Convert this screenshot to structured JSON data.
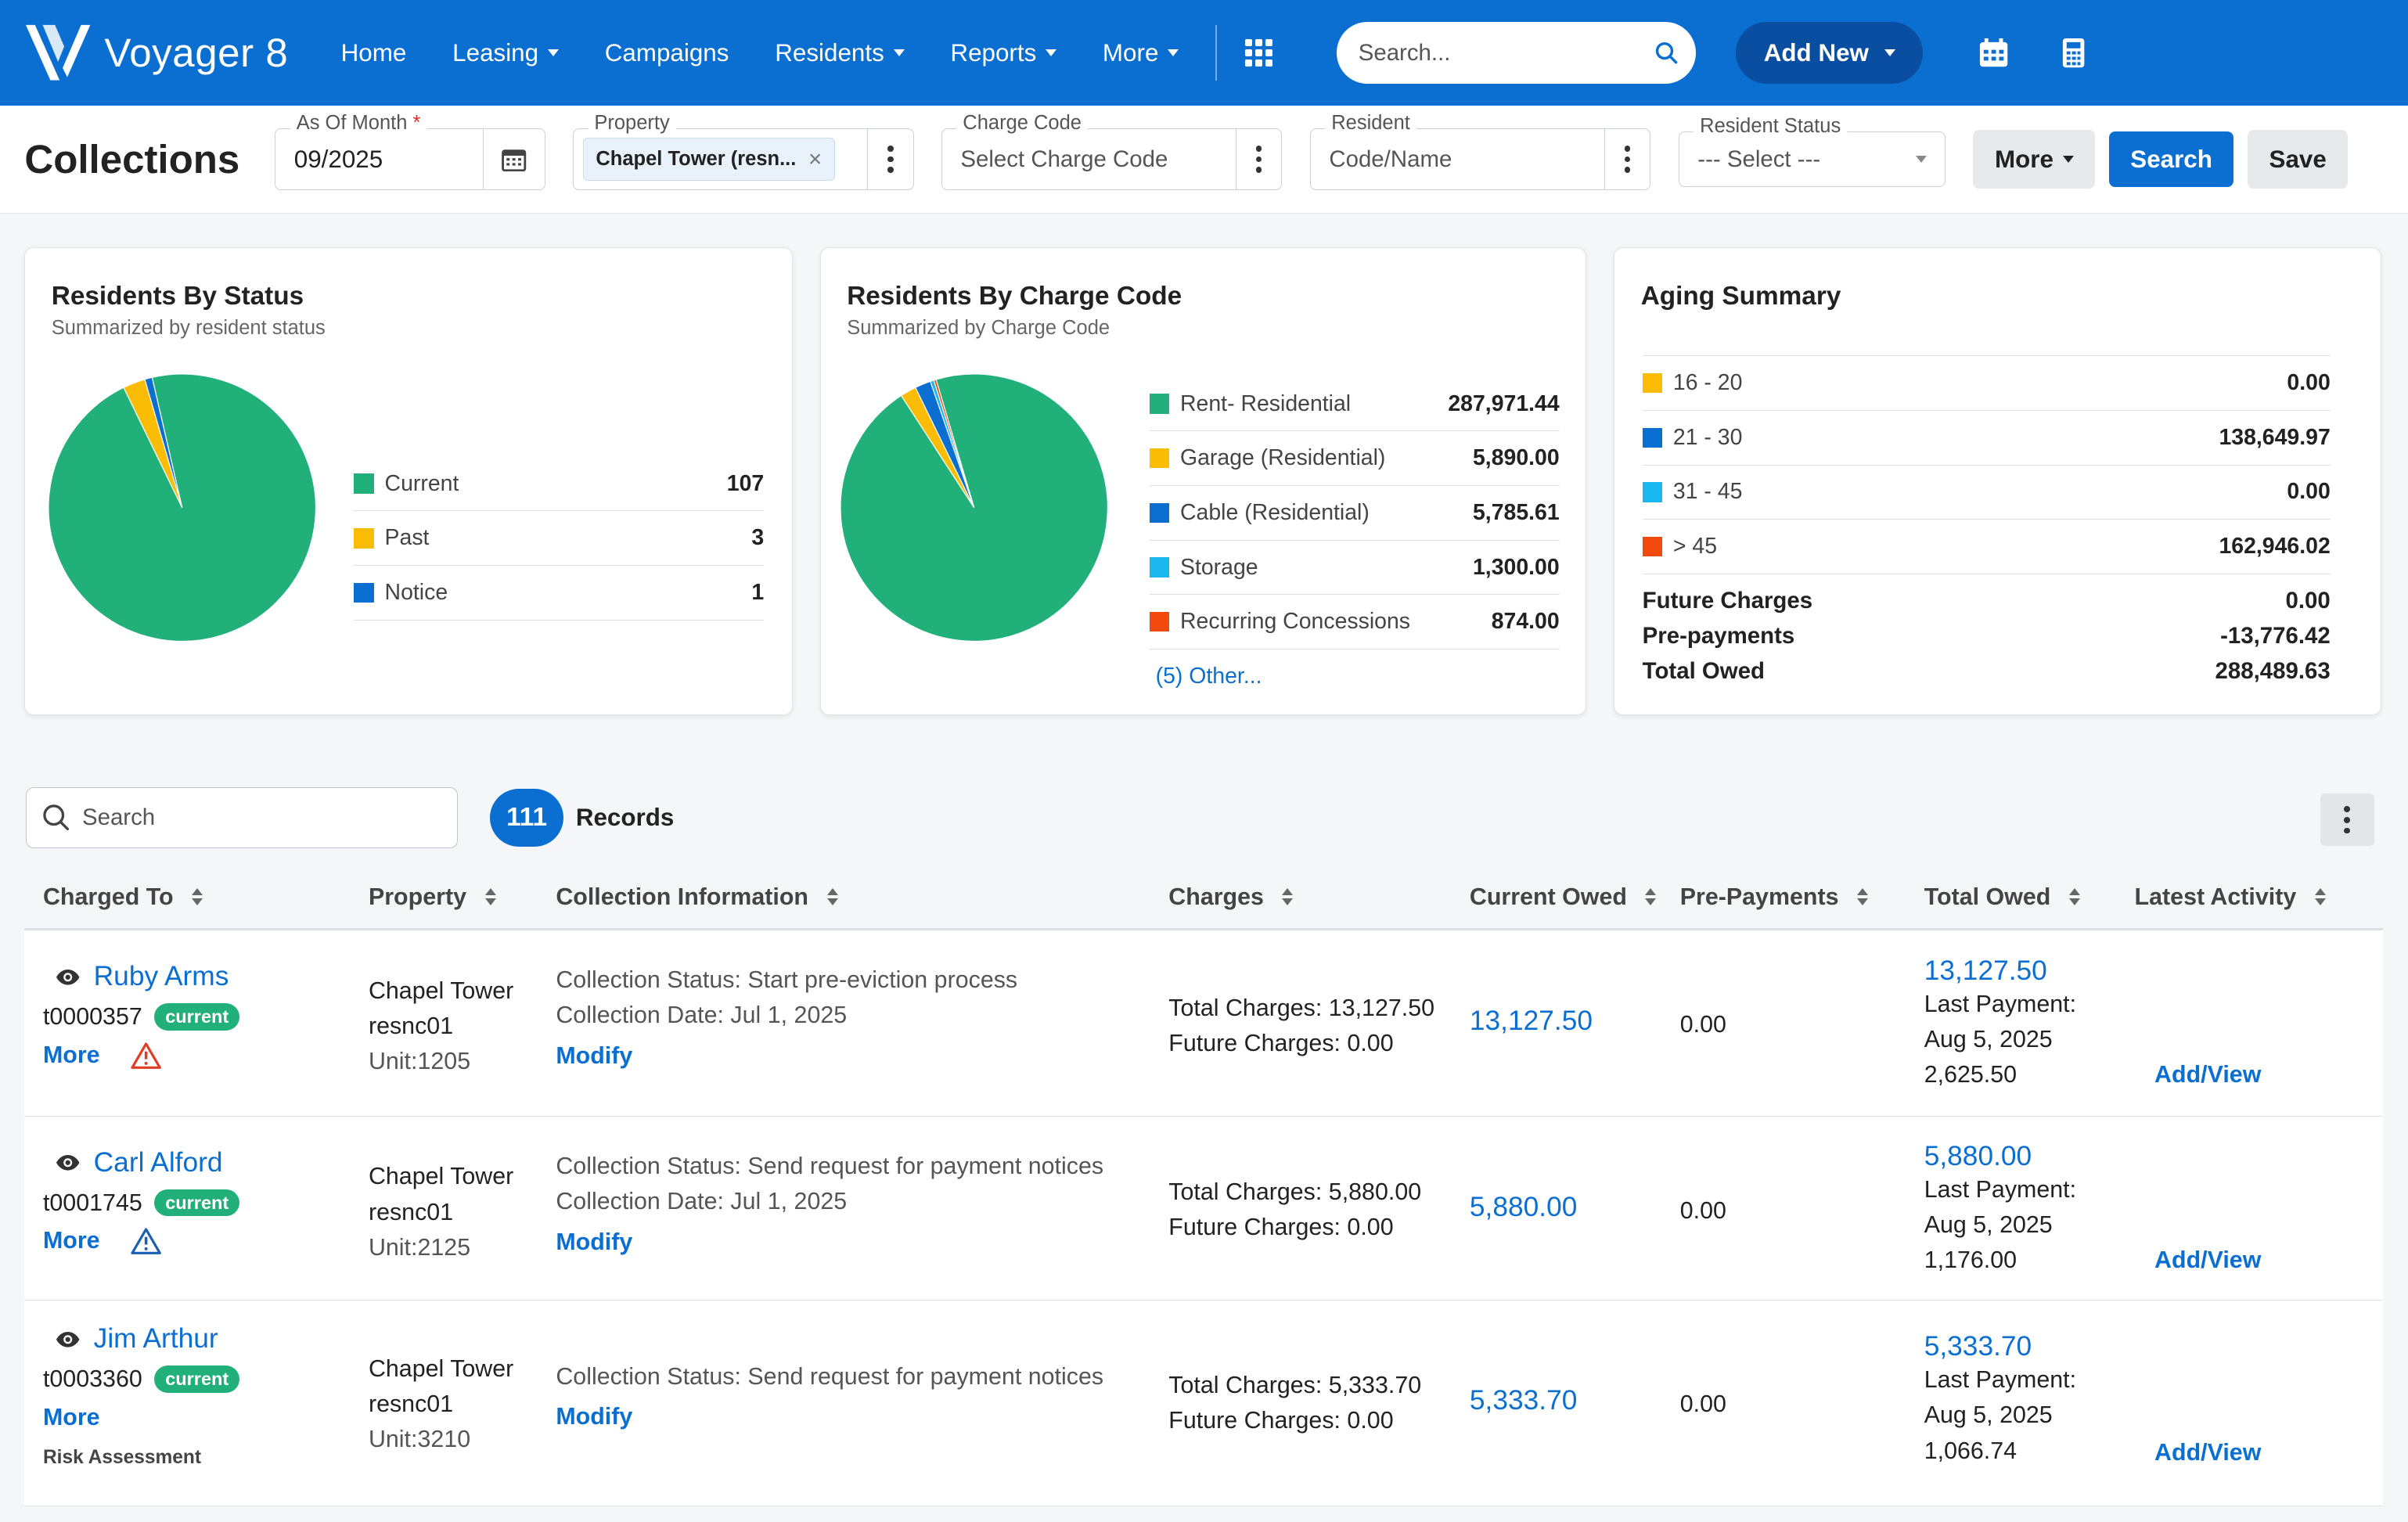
{
  "topnav": {
    "brand": "Voyager 8",
    "items": [
      {
        "label": "Home",
        "caret": false
      },
      {
        "label": "Leasing",
        "caret": true
      },
      {
        "label": "Campaigns",
        "caret": false
      },
      {
        "label": "Residents",
        "caret": true
      },
      {
        "label": "Reports",
        "caret": true
      },
      {
        "label": "More",
        "caret": true
      }
    ],
    "search_placeholder": "Search...",
    "add_new": "Add New"
  },
  "filters": {
    "page_title": "Collections",
    "as_of_month": {
      "label": "As Of Month",
      "required": "*",
      "value": "09/2025"
    },
    "property": {
      "label": "Property",
      "chip": "Chapel Tower (resn..."
    },
    "charge_code": {
      "label": "Charge Code",
      "placeholder": "Select Charge Code"
    },
    "resident": {
      "label": "Resident",
      "placeholder": "Code/Name"
    },
    "resident_status": {
      "label": "Resident Status",
      "value": "--- Select ---"
    },
    "more": "More",
    "search": "Search",
    "save": "Save"
  },
  "cards": {
    "status": {
      "title": "Residents By Status",
      "subtitle": "Summarized by resident status",
      "items": [
        {
          "label": "Current",
          "value": "107",
          "color": "#21b07a"
        },
        {
          "label": "Past",
          "value": "3",
          "color": "#fbbc05"
        },
        {
          "label": "Notice",
          "value": "1",
          "color": "#0b6fd1"
        }
      ]
    },
    "charge": {
      "title": "Residents By Charge Code",
      "subtitle": "Summarized by Charge Code",
      "items": [
        {
          "label": "Rent- Residential",
          "value": "287,971.44",
          "color": "#21b07a"
        },
        {
          "label": "Garage (Residential)",
          "value": "5,890.00",
          "color": "#fbbc05"
        },
        {
          "label": "Cable (Residential)",
          "value": "5,785.61",
          "color": "#0b6fd1"
        },
        {
          "label": "Storage",
          "value": "1,300.00",
          "color": "#1bb8f0"
        },
        {
          "label": "Recurring Concessions",
          "value": "874.00",
          "color": "#f24a0d"
        }
      ],
      "other": "(5) Other..."
    },
    "aging": {
      "title": "Aging Summary",
      "items": [
        {
          "label": "16 - 20",
          "value": "0.00",
          "color": "#fbbc05"
        },
        {
          "label": "21 - 30",
          "value": "138,649.97",
          "color": "#0b6fd1"
        },
        {
          "label": "31 - 45",
          "value": "0.00",
          "color": "#1bb8f0"
        },
        {
          "label": "> 45",
          "value": "162,946.02",
          "color": "#f24a0d"
        }
      ],
      "future_label": "Future Charges",
      "future_value": "0.00",
      "prepay_label": "Pre-payments",
      "prepay_value": "-13,776.42",
      "total_label": "Total Owed",
      "total_value": "288,489.63"
    }
  },
  "records": {
    "search_placeholder": "Search",
    "count": "111",
    "label": "Records"
  },
  "table": {
    "headers": [
      "Charged To",
      "Property",
      "Collection Information",
      "Charges",
      "Current Owed",
      "Pre-Payments",
      "Total Owed",
      "Latest Activity"
    ],
    "rows": [
      {
        "name": "Ruby Arms",
        "tid": "t0000357",
        "status": "current",
        "more": "More",
        "prop1": "Chapel Tower",
        "prop2": "resnc01",
        "unit": "Unit:1205",
        "coll_status": "Collection Status: Start pre-eviction process",
        "coll_date": "Collection Date: Jul 1, 2025",
        "modify": "Modify",
        "total_charges": "Total Charges: 13,127.50",
        "future_charges": "Future Charges: 0.00",
        "current_owed": "13,127.50",
        "prepay": "0.00",
        "total_owed": "13,127.50",
        "last_payment": "Last Payment:",
        "last_date": "Aug 5, 2025",
        "last_amt": "2,625.50",
        "activity": "Add/View"
      },
      {
        "name": "Carl Alford",
        "tid": "t0001745",
        "status": "current",
        "more": "More",
        "prop1": "Chapel Tower",
        "prop2": "resnc01",
        "unit": "Unit:2125",
        "coll_status": "Collection Status: Send request for payment notices",
        "coll_date": "Collection Date: Jul 1, 2025",
        "modify": "Modify",
        "total_charges": "Total Charges: 5,880.00",
        "future_charges": "Future Charges: 0.00",
        "current_owed": "5,880.00",
        "prepay": "0.00",
        "total_owed": "5,880.00",
        "last_payment": "Last Payment:",
        "last_date": "Aug 5, 2025",
        "last_amt": "1,176.00",
        "activity": "Add/View"
      },
      {
        "name": "Jim Arthur",
        "tid": "t0003360",
        "status": "current",
        "more": "More",
        "risk": "Risk Assessment",
        "prop1": "Chapel Tower",
        "prop2": "resnc01",
        "unit": "Unit:3210",
        "coll_status": "Collection Status: Send request for payment notices",
        "modify": "Modify",
        "total_charges": "Total Charges: 5,333.70",
        "future_charges": "Future Charges: 0.00",
        "current_owed": "5,333.70",
        "prepay": "0.00",
        "total_owed": "5,333.70",
        "last_payment": "Last Payment:",
        "last_date": "Aug 5, 2025",
        "last_amt": "1,066.74",
        "activity": "Add/View"
      }
    ]
  }
}
